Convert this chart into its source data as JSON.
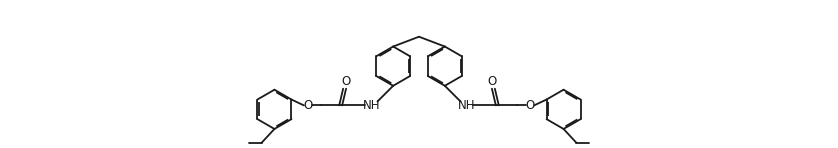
{
  "bg_color": "#ffffff",
  "line_color": "#1a1a1a",
  "lw": 1.3,
  "figsize": [
    8.38,
    1.48
  ],
  "dpi": 100,
  "xlim": [
    0,
    8.38
  ],
  "ylim": [
    0,
    1.48
  ],
  "O_label_fontsize": 8.5,
  "NH_label_fontsize": 8.5
}
